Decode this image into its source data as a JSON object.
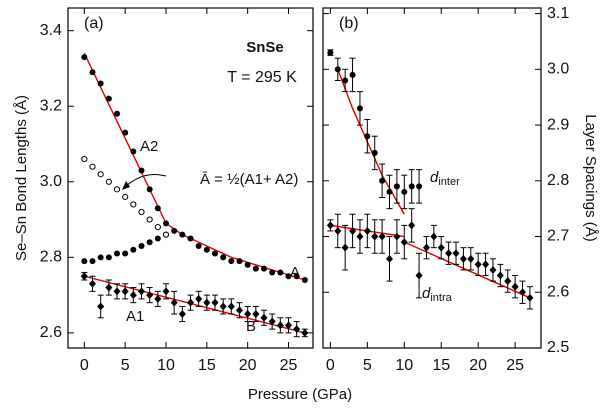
{
  "chart_data": [
    {
      "type": "scatter",
      "panel_label": "(a)",
      "title": "SnSe",
      "subtitle": "T = 295 K",
      "ylabel": "Se–Sn Bond Lengths (Å)",
      "xlabel": "Pressure (GPa)",
      "yaxis": "left",
      "xlim": [
        -2,
        28
      ],
      "ylim": [
        2.56,
        3.46
      ],
      "xticks": [
        0,
        5,
        10,
        15,
        20,
        25
      ],
      "yticks": [
        {
          "value": 2.6,
          "label": "2.6"
        },
        {
          "value": 2.8,
          "label": "2.8"
        },
        {
          "value": 3.0,
          "label": "3.0"
        },
        {
          "value": 3.2,
          "label": "3.2"
        },
        {
          "value": 3.4,
          "label": "3.4"
        }
      ],
      "series": [
        {
          "name": "A2",
          "marker": "circle",
          "color": "#000",
          "x": [
            0,
            1,
            2,
            3,
            4,
            5,
            6,
            7,
            8,
            9,
            10
          ],
          "values": [
            3.33,
            3.29,
            3.26,
            3.22,
            3.18,
            3.13,
            3.08,
            3.03,
            2.98,
            2.93,
            2.89
          ]
        },
        {
          "name": "A",
          "marker": "circle",
          "color": "#000",
          "x": [
            11,
            12,
            13,
            14,
            15,
            16,
            17,
            18,
            19,
            20,
            21,
            22,
            23,
            24,
            25,
            26,
            27
          ],
          "values": [
            2.87,
            2.86,
            2.85,
            2.83,
            2.82,
            2.81,
            2.8,
            2.79,
            2.79,
            2.78,
            2.77,
            2.77,
            2.76,
            2.76,
            2.75,
            2.75,
            2.74
          ]
        },
        {
          "name": "A1",
          "marker": "circle",
          "color": "#000",
          "x": [
            0,
            1,
            2,
            3,
            4,
            5,
            6,
            7,
            8,
            9,
            10
          ],
          "values": [
            2.79,
            2.79,
            2.8,
            2.8,
            2.81,
            2.81,
            2.82,
            2.83,
            2.84,
            2.85,
            2.86
          ]
        },
        {
          "name": "Ā = ½(A1+ A2)",
          "marker": "open-circle",
          "color": "#000",
          "x": [
            0,
            1,
            2,
            3,
            4,
            5,
            6,
            7,
            8,
            9,
            10
          ],
          "values": [
            3.06,
            3.04,
            3.02,
            3.0,
            2.98,
            2.96,
            2.94,
            2.92,
            2.9,
            2.88,
            2.86
          ]
        },
        {
          "name": "B",
          "marker": "diamond",
          "color": "#000",
          "x": [
            0,
            1,
            2,
            3,
            4,
            5,
            6,
            7,
            8,
            9,
            10,
            11,
            12,
            13,
            14,
            15,
            16,
            17,
            18,
            19,
            20,
            21,
            22,
            23,
            24,
            25,
            26,
            27
          ],
          "values": [
            2.75,
            2.73,
            2.67,
            2.72,
            2.71,
            2.71,
            2.7,
            2.71,
            2.7,
            2.69,
            2.71,
            2.68,
            2.65,
            2.68,
            2.69,
            2.68,
            2.68,
            2.67,
            2.67,
            2.66,
            2.65,
            2.65,
            2.64,
            2.63,
            2.62,
            2.62,
            2.61,
            2.6
          ],
          "errors": [
            0.01,
            0.02,
            0.03,
            0.02,
            0.02,
            0.02,
            0.02,
            0.02,
            0.02,
            0.02,
            0.02,
            0.03,
            0.02,
            0.02,
            0.02,
            0.02,
            0.02,
            0.02,
            0.02,
            0.02,
            0.02,
            0.02,
            0.02,
            0.02,
            0.02,
            0.02,
            0.02,
            0.01
          ]
        }
      ],
      "fits": [
        {
          "color": "#e00000",
          "x": [
            0,
            2,
            4,
            6,
            8,
            10,
            12,
            15,
            18,
            21,
            24,
            27
          ],
          "values": [
            3.34,
            3.25,
            3.16,
            3.07,
            2.98,
            2.89,
            2.86,
            2.83,
            2.8,
            2.78,
            2.76,
            2.74
          ]
        },
        {
          "color": "#e00000",
          "x": [
            0,
            27
          ],
          "values": [
            2.75,
            2.6
          ]
        }
      ]
    },
    {
      "type": "scatter",
      "panel_label": "(b)",
      "ylabel": "Layer Spacings (Å)",
      "yaxis": "right",
      "xlim": [
        -1,
        28.5
      ],
      "ylim": [
        2.5,
        3.11
      ],
      "xticks": [
        0,
        5,
        10,
        15,
        20,
        25
      ],
      "yticks": [
        2.5,
        2.6,
        2.7,
        2.8,
        2.9,
        {
          "value": 3.0,
          "label": "3.0"
        },
        3.1
      ],
      "series": [
        {
          "name": "d",
          "name_sub": "inter",
          "marker": "circle",
          "color": "#000",
          "x": [
            0,
            1,
            2,
            3,
            4,
            5,
            6,
            7,
            8,
            9,
            10,
            11,
            12
          ],
          "values": [
            3.03,
            3.0,
            2.98,
            2.99,
            2.93,
            2.88,
            2.85,
            2.8,
            2.78,
            2.79,
            2.78,
            2.79,
            2.79
          ],
          "errors": [
            0.005,
            0.02,
            0.02,
            0.03,
            0.03,
            0.03,
            0.03,
            0.03,
            0.03,
            0.03,
            0.03,
            0.03,
            0.03
          ]
        },
        {
          "name": "d",
          "name_sub": "intra",
          "marker": "diamond",
          "color": "#000",
          "x": [
            0,
            1,
            2,
            3,
            4,
            5,
            6,
            7,
            8,
            9,
            10,
            11,
            12,
            13,
            14,
            15,
            16,
            17,
            18,
            19,
            20,
            21,
            22,
            23,
            24,
            25,
            26,
            27
          ],
          "values": [
            2.72,
            2.71,
            2.68,
            2.71,
            2.7,
            2.71,
            2.7,
            2.7,
            2.66,
            2.7,
            2.69,
            2.72,
            2.63,
            2.68,
            2.7,
            2.68,
            2.67,
            2.67,
            2.66,
            2.66,
            2.65,
            2.65,
            2.64,
            2.63,
            2.62,
            2.61,
            2.6,
            2.59
          ],
          "errors": [
            0.01,
            0.03,
            0.04,
            0.03,
            0.03,
            0.03,
            0.03,
            0.03,
            0.04,
            0.03,
            0.03,
            0.03,
            0.04,
            0.02,
            0.02,
            0.02,
            0.02,
            0.02,
            0.02,
            0.02,
            0.02,
            0.02,
            0.02,
            0.02,
            0.02,
            0.02,
            0.02,
            0.02
          ]
        }
      ],
      "fits": [
        {
          "color": "#e00000",
          "x": [
            1,
            3,
            5,
            7,
            10
          ],
          "values": [
            3.0,
            2.93,
            2.87,
            2.81,
            2.74
          ]
        },
        {
          "color": "#e00000",
          "x": [
            0,
            10
          ],
          "values": [
            2.72,
            2.7
          ]
        },
        {
          "color": "#e00000",
          "x": [
            10,
            27
          ],
          "values": [
            2.69,
            2.59
          ]
        }
      ]
    }
  ]
}
